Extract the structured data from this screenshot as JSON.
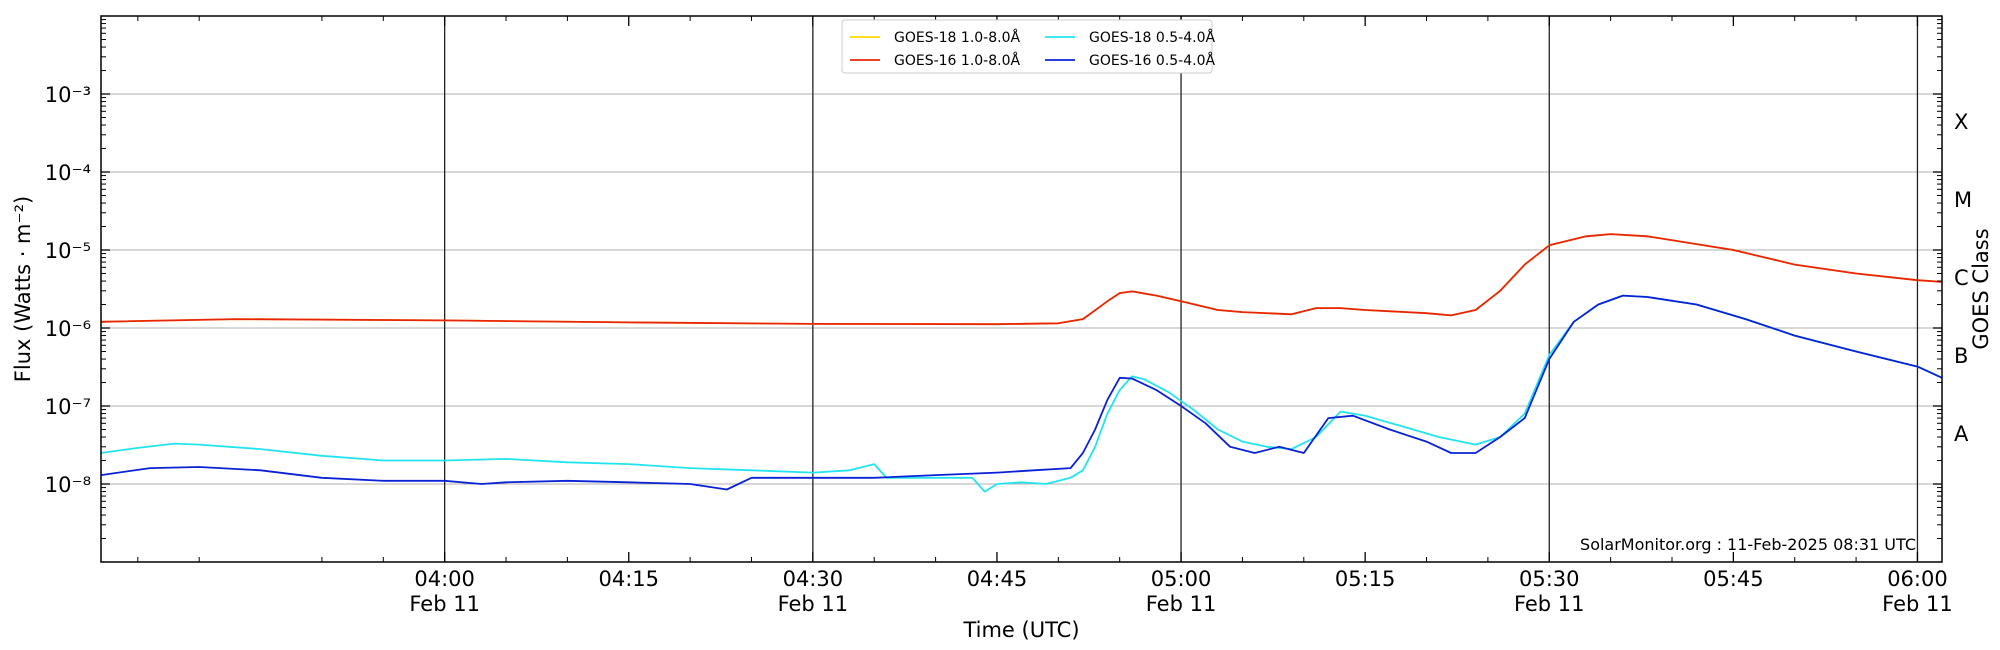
{
  "chart_data": {
    "type": "line",
    "title": "",
    "xlabel": "Time (UTC)",
    "ylabel": "Flux (Watts · m⁻²)",
    "right_label": "GOES Class",
    "y_scale": "log",
    "xlim": [
      "03:32",
      "06:02"
    ],
    "ylim": [
      1e-09,
      0.01
    ],
    "x_ticks": [
      {
        "t": "04:00",
        "label": "04:00",
        "date": "Feb 11"
      },
      {
        "t": "04:15",
        "label": "04:15",
        "date": ""
      },
      {
        "t": "04:30",
        "label": "04:30",
        "date": "Feb 11"
      },
      {
        "t": "04:45",
        "label": "04:45",
        "date": ""
      },
      {
        "t": "05:00",
        "label": "05:00",
        "date": "Feb 11"
      },
      {
        "t": "05:15",
        "label": "05:15",
        "date": ""
      },
      {
        "t": "05:30",
        "label": "05:30",
        "date": "Feb 11"
      },
      {
        "t": "05:45",
        "label": "05:45",
        "date": ""
      },
      {
        "t": "06:00",
        "label": "06:00",
        "date": "Feb 11"
      }
    ],
    "y_ticks": [
      {
        "value": 1e-08,
        "label": "10⁻⁸"
      },
      {
        "value": 1e-07,
        "label": "10⁻⁷"
      },
      {
        "value": 1e-06,
        "label": "10⁻⁶"
      },
      {
        "value": 1e-05,
        "label": "10⁻⁵"
      },
      {
        "value": 0.0001,
        "label": "10⁻⁴"
      },
      {
        "value": 0.001,
        "label": "10⁻³"
      }
    ],
    "goes_classes": [
      {
        "label": "A",
        "value": 4.5e-08
      },
      {
        "label": "B",
        "value": 4.5e-07
      },
      {
        "label": "C",
        "value": 4.5e-06
      },
      {
        "label": "M",
        "value": 4.5e-05
      },
      {
        "label": "X",
        "value": 0.00045
      }
    ],
    "vertical_lines": [
      "04:00",
      "04:30",
      "05:00",
      "05:30",
      "06:00"
    ],
    "grid": "horizontal",
    "legend_position": "top-center",
    "credit": "SolarMonitor.org : 11-Feb-2025 08:31 UTC",
    "series": [
      {
        "name": "GOES-18 1.0-8.0Å",
        "color": "#ffd700",
        "points": [
          [
            "03:32",
            1.2e-06
          ],
          [
            "03:43",
            1.3e-06
          ],
          [
            "04:00",
            1.25e-06
          ],
          [
            "04:15",
            1.18e-06
          ],
          [
            "04:30",
            1.13e-06
          ],
          [
            "04:45",
            1.12e-06
          ],
          [
            "04:50",
            1.15e-06
          ],
          [
            "04:52",
            1.3e-06
          ],
          [
            "04:54",
            2.2e-06
          ],
          [
            "04:55",
            2.8e-06
          ],
          [
            "04:56",
            2.95e-06
          ],
          [
            "04:58",
            2.6e-06
          ],
          [
            "05:00",
            2.2e-06
          ],
          [
            "05:03",
            1.7e-06
          ],
          [
            "05:05",
            1.6e-06
          ],
          [
            "05:09",
            1.5e-06
          ],
          [
            "05:11",
            1.8e-06
          ],
          [
            "05:13",
            1.8e-06
          ],
          [
            "05:15",
            1.7e-06
          ],
          [
            "05:20",
            1.55e-06
          ],
          [
            "05:22",
            1.45e-06
          ],
          [
            "05:24",
            1.7e-06
          ],
          [
            "05:26",
            3e-06
          ],
          [
            "05:28",
            6.5e-06
          ],
          [
            "05:30",
            1.15e-05
          ],
          [
            "05:33",
            1.5e-05
          ],
          [
            "05:35",
            1.6e-05
          ],
          [
            "05:38",
            1.5e-05
          ],
          [
            "05:45",
            1e-05
          ],
          [
            "05:50",
            6.5e-06
          ],
          [
            "05:55",
            5e-06
          ],
          [
            "06:00",
            4.1e-06
          ],
          [
            "06:02",
            3.9e-06
          ]
        ]
      },
      {
        "name": "GOES-16 1.0-8.0Å",
        "color": "#e8250c",
        "points": [
          [
            "03:32",
            1.2e-06
          ],
          [
            "03:43",
            1.3e-06
          ],
          [
            "04:00",
            1.25e-06
          ],
          [
            "04:15",
            1.18e-06
          ],
          [
            "04:30",
            1.13e-06
          ],
          [
            "04:45",
            1.12e-06
          ],
          [
            "04:50",
            1.15e-06
          ],
          [
            "04:52",
            1.3e-06
          ],
          [
            "04:54",
            2.2e-06
          ],
          [
            "04:55",
            2.8e-06
          ],
          [
            "04:56",
            2.95e-06
          ],
          [
            "04:58",
            2.6e-06
          ],
          [
            "05:00",
            2.2e-06
          ],
          [
            "05:03",
            1.7e-06
          ],
          [
            "05:05",
            1.6e-06
          ],
          [
            "05:09",
            1.5e-06
          ],
          [
            "05:11",
            1.8e-06
          ],
          [
            "05:13",
            1.8e-06
          ],
          [
            "05:15",
            1.7e-06
          ],
          [
            "05:20",
            1.55e-06
          ],
          [
            "05:22",
            1.45e-06
          ],
          [
            "05:24",
            1.7e-06
          ],
          [
            "05:26",
            3e-06
          ],
          [
            "05:28",
            6.5e-06
          ],
          [
            "05:30",
            1.15e-05
          ],
          [
            "05:33",
            1.5e-05
          ],
          [
            "05:35",
            1.6e-05
          ],
          [
            "05:38",
            1.5e-05
          ],
          [
            "05:45",
            1e-05
          ],
          [
            "05:50",
            6.5e-06
          ],
          [
            "05:55",
            5e-06
          ],
          [
            "06:00",
            4.1e-06
          ],
          [
            "06:02",
            3.9e-06
          ]
        ]
      },
      {
        "name": "GOES-18 0.5-4.0Å",
        "color": "#22e4ee",
        "points": [
          [
            "03:32",
            2.5e-08
          ],
          [
            "03:35",
            2.9e-08
          ],
          [
            "03:38",
            3.3e-08
          ],
          [
            "03:40",
            3.2e-08
          ],
          [
            "03:45",
            2.8e-08
          ],
          [
            "03:50",
            2.3e-08
          ],
          [
            "03:55",
            2e-08
          ],
          [
            "04:00",
            2e-08
          ],
          [
            "04:05",
            2.1e-08
          ],
          [
            "04:10",
            1.9e-08
          ],
          [
            "04:15",
            1.8e-08
          ],
          [
            "04:20",
            1.6e-08
          ],
          [
            "04:25",
            1.5e-08
          ],
          [
            "04:30",
            1.4e-08
          ],
          [
            "04:33",
            1.5e-08
          ],
          [
            "04:35",
            1.8e-08
          ],
          [
            "04:36",
            1.2e-08
          ],
          [
            "04:40",
            1.2e-08
          ],
          [
            "04:43",
            1.2e-08
          ],
          [
            "04:44",
            8e-09
          ],
          [
            "04:45",
            1e-08
          ],
          [
            "04:47",
            1.05e-08
          ],
          [
            "04:49",
            1e-08
          ],
          [
            "04:51",
            1.2e-08
          ],
          [
            "04:52",
            1.5e-08
          ],
          [
            "04:53",
            3e-08
          ],
          [
            "04:54",
            8e-08
          ],
          [
            "04:55",
            1.6e-07
          ],
          [
            "04:56",
            2.4e-07
          ],
          [
            "04:57",
            2.2e-07
          ],
          [
            "04:59",
            1.5e-07
          ],
          [
            "05:01",
            9e-08
          ],
          [
            "05:03",
            5e-08
          ],
          [
            "05:05",
            3.5e-08
          ],
          [
            "05:07",
            3e-08
          ],
          [
            "05:09",
            2.8e-08
          ],
          [
            "05:11",
            4e-08
          ],
          [
            "05:13",
            8.5e-08
          ],
          [
            "05:15",
            7.5e-08
          ],
          [
            "05:18",
            5.5e-08
          ],
          [
            "05:21",
            4e-08
          ],
          [
            "05:24",
            3.2e-08
          ],
          [
            "05:26",
            4e-08
          ],
          [
            "05:28",
            8e-08
          ],
          [
            "05:30",
            4.5e-07
          ],
          [
            "05:32",
            1.2e-06
          ],
          [
            "05:34",
            2e-06
          ],
          [
            "05:36",
            2.6e-06
          ],
          [
            "05:38",
            2.5e-06
          ],
          [
            "05:42",
            2e-06
          ],
          [
            "05:46",
            1.3e-06
          ],
          [
            "05:50",
            8e-07
          ],
          [
            "05:55",
            5e-07
          ],
          [
            "06:00",
            3.2e-07
          ],
          [
            "06:02",
            2.3e-07
          ]
        ]
      },
      {
        "name": "GOES-16 0.5-4.0Å",
        "color": "#0a22d6",
        "points": [
          [
            "03:32",
            1.3e-08
          ],
          [
            "03:36",
            1.6e-08
          ],
          [
            "03:40",
            1.65e-08
          ],
          [
            "03:45",
            1.5e-08
          ],
          [
            "03:50",
            1.2e-08
          ],
          [
            "03:55",
            1.1e-08
          ],
          [
            "04:00",
            1.1e-08
          ],
          [
            "04:03",
            1e-08
          ],
          [
            "04:05",
            1.05e-08
          ],
          [
            "04:10",
            1.1e-08
          ],
          [
            "04:15",
            1.05e-08
          ],
          [
            "04:20",
            1e-08
          ],
          [
            "04:23",
            8.5e-09
          ],
          [
            "04:25",
            1.2e-08
          ],
          [
            "04:30",
            1.2e-08
          ],
          [
            "04:35",
            1.2e-08
          ],
          [
            "04:40",
            1.3e-08
          ],
          [
            "04:45",
            1.4e-08
          ],
          [
            "04:48",
            1.5e-08
          ],
          [
            "04:51",
            1.6e-08
          ],
          [
            "04:52",
            2.5e-08
          ],
          [
            "04:53",
            5e-08
          ],
          [
            "04:54",
            1.2e-07
          ],
          [
            "04:55",
            2.3e-07
          ],
          [
            "04:56",
            2.25e-07
          ],
          [
            "04:58",
            1.6e-07
          ],
          [
            "05:00",
            1e-07
          ],
          [
            "05:02",
            6e-08
          ],
          [
            "05:04",
            3e-08
          ],
          [
            "05:06",
            2.5e-08
          ],
          [
            "05:08",
            3e-08
          ],
          [
            "05:10",
            2.5e-08
          ],
          [
            "05:12",
            7e-08
          ],
          [
            "05:14",
            7.5e-08
          ],
          [
            "05:17",
            5e-08
          ],
          [
            "05:20",
            3.5e-08
          ],
          [
            "05:22",
            2.5e-08
          ],
          [
            "05:24",
            2.5e-08
          ],
          [
            "05:26",
            4e-08
          ],
          [
            "05:28",
            7e-08
          ],
          [
            "05:30",
            4e-07
          ],
          [
            "05:32",
            1.2e-06
          ],
          [
            "05:34",
            2e-06
          ],
          [
            "05:36",
            2.6e-06
          ],
          [
            "05:38",
            2.5e-06
          ],
          [
            "05:42",
            2e-06
          ],
          [
            "05:46",
            1.3e-06
          ],
          [
            "05:50",
            8e-07
          ],
          [
            "05:55",
            5e-07
          ],
          [
            "06:00",
            3.2e-07
          ],
          [
            "06:02",
            2.3e-07
          ]
        ]
      }
    ]
  }
}
